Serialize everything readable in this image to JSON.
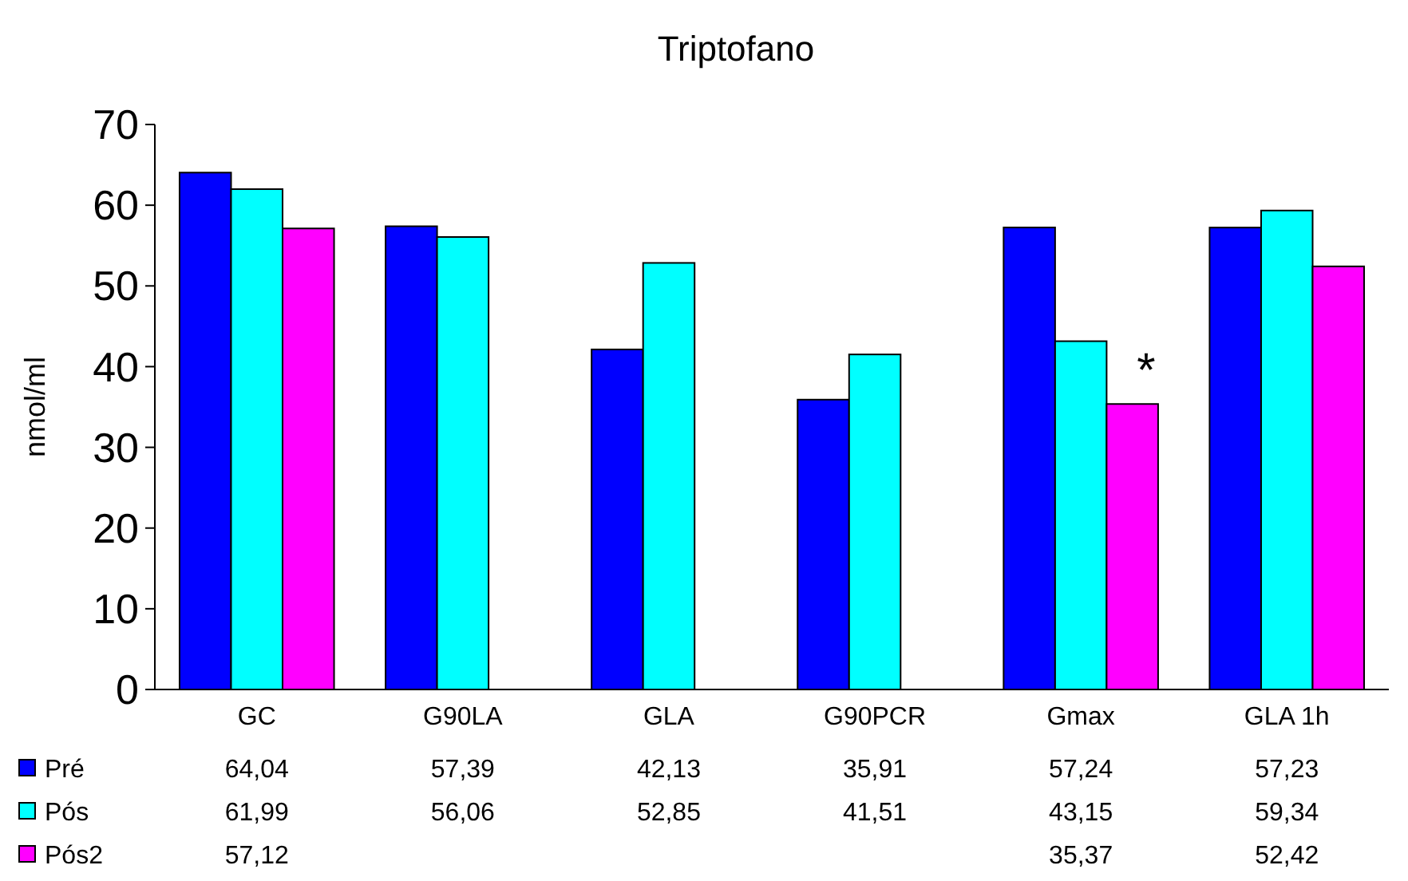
{
  "chart_data": {
    "type": "bar",
    "title": "Triptofano",
    "ylabel": "nmol/ml",
    "categories": [
      "GC",
      "G90LA",
      "GLA",
      "G90PCR",
      "Gmax",
      "GLA 1h"
    ],
    "series": [
      {
        "name": "Pré",
        "color": "#0000ff",
        "values": [
          64.04,
          57.39,
          42.13,
          35.91,
          57.24,
          57.23
        ],
        "value_labels": [
          "64,04",
          "57,39",
          "42,13",
          "35,91",
          "57,24",
          "57,23"
        ]
      },
      {
        "name": "Pós",
        "color": "#00ffff",
        "values": [
          61.99,
          56.06,
          52.85,
          41.51,
          43.15,
          59.34
        ],
        "value_labels": [
          "61,99",
          "56,06",
          "52,85",
          "41,51",
          "43,15",
          "59,34"
        ]
      },
      {
        "name": "Pós2",
        "color": "#ff00ff",
        "values": [
          57.12,
          null,
          null,
          null,
          35.37,
          52.42
        ],
        "value_labels": [
          "57,12",
          null,
          null,
          null,
          "35,37",
          "52,42"
        ]
      }
    ],
    "ylim": [
      0,
      70
    ],
    "yticks": [
      0,
      10,
      20,
      30,
      40,
      50,
      60,
      70
    ],
    "grid": false,
    "legend": "bottom left",
    "annotations": [
      "*"
    ]
  }
}
